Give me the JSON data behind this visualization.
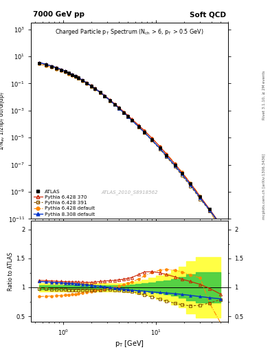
{
  "title_top_left": "7000 GeV pp",
  "title_top_right": "Soft QCD",
  "main_title": "Charged Particle p$_{\\rm T}$ Spectrum (N$_{\\rm ch}$ > 6, p$_{\\rm T}$ > 0.5 GeV)",
  "ylabel_main": "1/N$_{\\rm ev}$ 1/2πp$_{\\rm T}$ dσ/dηdp$_{\\rm T}$",
  "ylabel_ratio": "Ratio to ATLAS",
  "xlabel": "p$_{\\rm T}$ [GeV]",
  "watermark": "ATLAS_2010_S8918562",
  "side_text1": "Rivet 3.1.10, ≥ 2M events",
  "side_text2": "mcplots.cern.ch [arXiv:1306.3436]",
  "pt_values": [
    0.55,
    0.65,
    0.75,
    0.85,
    0.95,
    1.05,
    1.15,
    1.25,
    1.35,
    1.45,
    1.6,
    1.8,
    2.0,
    2.2,
    2.5,
    2.8,
    3.2,
    3.6,
    4.0,
    4.5,
    5.0,
    5.5,
    6.5,
    7.5,
    9.0,
    11.0,
    13.0,
    16.0,
    19.0,
    23.5,
    30.0,
    38.0,
    50.0
  ],
  "atlas_values": [
    3.2,
    2.4,
    1.8,
    1.35,
    1.02,
    0.77,
    0.585,
    0.445,
    0.34,
    0.262,
    0.175,
    0.105,
    0.065,
    0.041,
    0.022,
    0.012,
    0.0055,
    0.0028,
    0.00148,
    0.00072,
    0.000375,
    0.000198,
    6.8e-05,
    2.65e-05,
    7.5e-06,
    1.8e-06,
    4.9e-07,
    9.8e-08,
    2.3e-08,
    3.9e-09,
    4.2e-10,
    5.2e-11,
    4.2e-12
  ],
  "atlas_errors_lo": [
    0.12,
    0.09,
    0.067,
    0.05,
    0.038,
    0.029,
    0.022,
    0.017,
    0.013,
    0.01,
    0.007,
    0.004,
    0.0025,
    0.0016,
    0.00085,
    0.00046,
    0.00021,
    0.00011,
    5.7e-05,
    2.8e-05,
    1.45e-05,
    7.6e-06,
    2.6e-06,
    1e-06,
    2.9e-07,
    6.9e-08,
    1.9e-08,
    3.8e-09,
    8.8e-10,
    1.5e-10,
    1.6e-11,
    2e-12,
    1.6e-13
  ],
  "atlas_errors_hi": [
    0.12,
    0.09,
    0.067,
    0.05,
    0.038,
    0.029,
    0.022,
    0.017,
    0.013,
    0.01,
    0.007,
    0.004,
    0.0025,
    0.0016,
    0.00085,
    0.00046,
    0.00021,
    0.00011,
    5.7e-05,
    2.8e-05,
    1.45e-05,
    7.6e-06,
    2.6e-06,
    1e-06,
    2.9e-07,
    6.9e-08,
    1.9e-08,
    3.8e-09,
    8.8e-10,
    1.5e-10,
    1.6e-11,
    2e-12,
    1.6e-13
  ],
  "py6_370_ratio": [
    1.12,
    1.115,
    1.11,
    1.105,
    1.1,
    1.098,
    1.096,
    1.094,
    1.092,
    1.09,
    1.088,
    1.086,
    1.087,
    1.09,
    1.1,
    1.108,
    1.115,
    1.12,
    1.13,
    1.14,
    1.155,
    1.17,
    1.22,
    1.265,
    1.27,
    1.25,
    1.22,
    1.18,
    1.14,
    1.1,
    1.05,
    0.98,
    0.88
  ],
  "py6_391_ratio": [
    0.975,
    0.97,
    0.965,
    0.962,
    0.96,
    0.958,
    0.957,
    0.956,
    0.955,
    0.955,
    0.955,
    0.955,
    0.955,
    0.956,
    0.957,
    0.958,
    0.958,
    0.956,
    0.952,
    0.944,
    0.935,
    0.924,
    0.898,
    0.87,
    0.835,
    0.795,
    0.76,
    0.725,
    0.7,
    0.68,
    0.69,
    0.73,
    0.79
  ],
  "py6_def_ratio": [
    0.84,
    0.845,
    0.85,
    0.855,
    0.86,
    0.866,
    0.872,
    0.878,
    0.884,
    0.89,
    0.9,
    0.912,
    0.924,
    0.935,
    0.95,
    0.965,
    0.983,
    1.0,
    1.02,
    1.042,
    1.065,
    1.09,
    1.145,
    1.195,
    1.255,
    1.295,
    1.31,
    1.295,
    1.265,
    1.215,
    1.16,
    0.72,
    0.38
  ],
  "py8_def_ratio": [
    1.1,
    1.093,
    1.087,
    1.082,
    1.077,
    1.073,
    1.069,
    1.065,
    1.061,
    1.057,
    1.051,
    1.043,
    1.035,
    1.028,
    1.018,
    1.008,
    0.997,
    0.987,
    0.977,
    0.967,
    0.958,
    0.95,
    0.94,
    0.932,
    0.92,
    0.91,
    0.902,
    0.89,
    0.878,
    0.86,
    0.84,
    0.82,
    0.8
  ],
  "atlas_band_yellow_lo": [
    0.93,
    0.93,
    0.93,
    0.93,
    0.93,
    0.93,
    0.93,
    0.93,
    0.93,
    0.93,
    0.93,
    0.93,
    0.93,
    0.93,
    0.93,
    0.93,
    0.93,
    0.93,
    0.93,
    0.93,
    0.92,
    0.91,
    0.89,
    0.87,
    0.84,
    0.8,
    0.76,
    0.7,
    0.65,
    0.55,
    0.48,
    0.48,
    0.48
  ],
  "atlas_band_yellow_hi": [
    1.07,
    1.07,
    1.07,
    1.07,
    1.07,
    1.07,
    1.07,
    1.07,
    1.07,
    1.07,
    1.07,
    1.07,
    1.07,
    1.07,
    1.07,
    1.07,
    1.07,
    1.07,
    1.07,
    1.07,
    1.08,
    1.09,
    1.11,
    1.13,
    1.16,
    1.2,
    1.24,
    1.3,
    1.35,
    1.45,
    1.52,
    1.52,
    1.52
  ],
  "atlas_band_green_lo": [
    0.965,
    0.965,
    0.965,
    0.965,
    0.965,
    0.965,
    0.965,
    0.965,
    0.965,
    0.965,
    0.965,
    0.965,
    0.965,
    0.965,
    0.965,
    0.965,
    0.965,
    0.965,
    0.965,
    0.965,
    0.96,
    0.955,
    0.945,
    0.935,
    0.92,
    0.9,
    0.88,
    0.855,
    0.825,
    0.775,
    0.74,
    0.74,
    0.74
  ],
  "atlas_band_green_hi": [
    1.035,
    1.035,
    1.035,
    1.035,
    1.035,
    1.035,
    1.035,
    1.035,
    1.035,
    1.035,
    1.035,
    1.035,
    1.035,
    1.035,
    1.035,
    1.035,
    1.035,
    1.035,
    1.035,
    1.035,
    1.04,
    1.045,
    1.055,
    1.065,
    1.08,
    1.1,
    1.12,
    1.145,
    1.175,
    1.225,
    1.26,
    1.26,
    1.26
  ],
  "color_atlas": "#000000",
  "color_py6_370": "#cc2200",
  "color_py6_391": "#885500",
  "color_py6_def": "#ff8800",
  "color_py8_def": "#0033cc",
  "color_yellow": "#ffff44",
  "color_green": "#44cc44",
  "xlim": [
    0.45,
    60
  ],
  "ylim_main": [
    1e-11,
    3000.0
  ],
  "ylim_ratio": [
    0.4,
    2.1
  ],
  "ratio_yticks": [
    0.5,
    1.0,
    1.5,
    2.0
  ]
}
